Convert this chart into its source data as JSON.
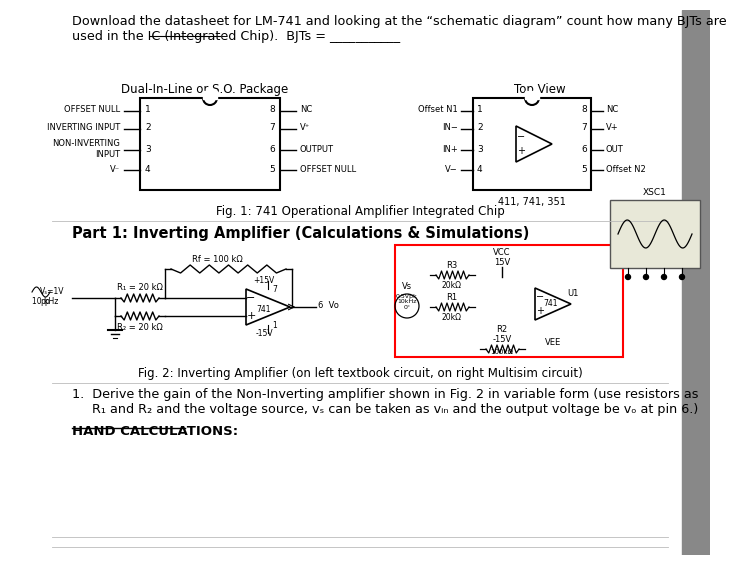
{
  "bg_color": "#ffffff",
  "header_text": "Download the datasheet for LM-741 and looking at the “schematic diagram” count how many BJTs are\nused in the IC (Integrated Chip).  BJTs = ___________",
  "fig1_caption": "Fig. 1: 741 Operational Amplifier Integrated Chip",
  "fig2_caption": "Fig. 2: Inverting Amplifier (on left textbook circuit, on right Multisim circuit)",
  "part1_title": "Part 1: Inverting Amplifier (Calculations & Simulations)",
  "question1": "1.  Derive the gain of the Non-Inverting amplifier shown in Fig. 2 in variable form (use resistors as\n     R₁ and R₂ and the voltage source, vₛ can be taken as vᵢₙ and the output voltage be vₒ at pin 6.)",
  "hand_calc": "HAND CALCULATIONS:",
  "font_size_header": 9.5,
  "font_size_body": 9.5,
  "font_size_part": 10.5,
  "line_color": "#888888",
  "divider_color": "#cccccc"
}
